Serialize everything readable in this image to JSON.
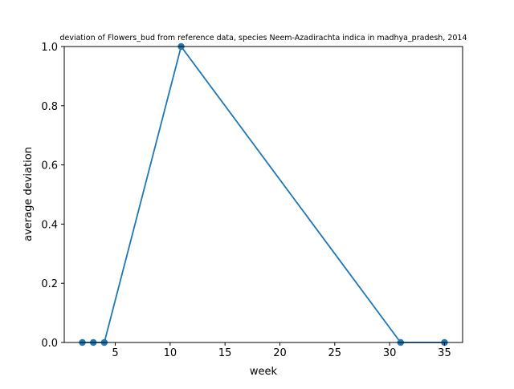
{
  "chart_data": {
    "type": "line",
    "title": "deviation of Flowers_bud from reference data, species Neem-Azadirachta indica in madhya_pradesh, 2014",
    "xlabel": "week",
    "ylabel": "average deviation",
    "xlim": [
      0.35,
      36.65
    ],
    "ylim": [
      0.0,
      1.0
    ],
    "xticks": [
      5,
      10,
      15,
      20,
      25,
      30,
      35
    ],
    "xtick_labels": [
      "5",
      "10",
      "15",
      "20",
      "25",
      "30",
      "35"
    ],
    "yticks": [
      0.0,
      0.2,
      0.4,
      0.6,
      0.8,
      1.0
    ],
    "ytick_labels": [
      "0.0",
      "0.2",
      "0.4",
      "0.6",
      "0.8",
      "1.0"
    ],
    "grid": false,
    "series": [
      {
        "color": "#1f77b4",
        "marker": "circle",
        "x": [
          2,
          3,
          4,
          11,
          31,
          35
        ],
        "y": [
          0.0,
          0.0,
          0.0,
          1.0,
          0.0,
          0.0
        ]
      }
    ]
  }
}
